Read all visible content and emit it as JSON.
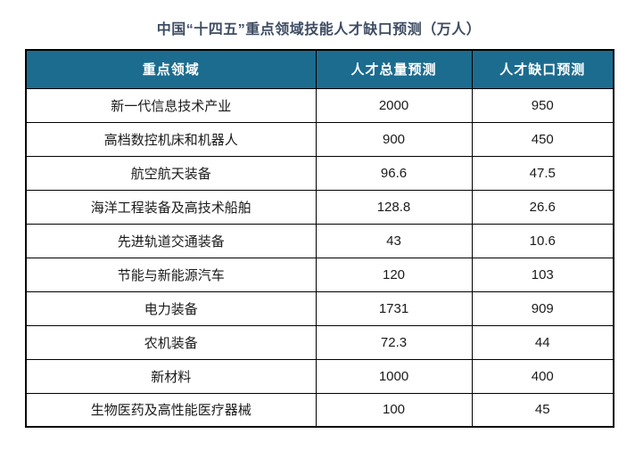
{
  "chart_data": {
    "type": "table",
    "title": "中国“十四五”重点领域技能人才缺口预测（万人）",
    "columns": [
      "重点领域",
      "人才总量预测",
      "人才缺口预测"
    ],
    "rows": [
      [
        "新一代信息技术产业",
        2000,
        950
      ],
      [
        "高档数控机床和机器人",
        900,
        450
      ],
      [
        "航空航天装备",
        96.6,
        47.5
      ],
      [
        "海洋工程装备及高技术船舶",
        128.8,
        26.6
      ],
      [
        "先进轨道交通装备",
        43,
        10.6
      ],
      [
        "节能与新能源汽车",
        120,
        103
      ],
      [
        "电力装备",
        1731,
        909
      ],
      [
        "农机装备",
        72.3,
        44
      ],
      [
        "新材料",
        1000,
        400
      ],
      [
        "生物医药及高性能医疗器械",
        100,
        45
      ]
    ],
    "layout": {
      "grid": true,
      "header_position": "top",
      "value_unit": "万人"
    }
  },
  "colors": {
    "header_bg": "#1C6C90",
    "header_text": "#FFFFFF",
    "title_text": "#3D4C63",
    "cell_text": "#1A1A1A",
    "border": "#000000",
    "page_bg": "#FFFFFF"
  }
}
